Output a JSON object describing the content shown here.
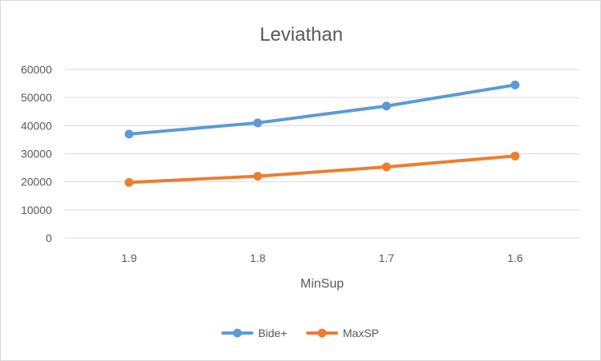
{
  "chart_data": {
    "type": "line",
    "title": "Leviathan",
    "xlabel": "MinSup",
    "ylabel": "",
    "categories": [
      "1.9",
      "1.8",
      "1.7",
      "1.6"
    ],
    "ylim": [
      0,
      60000
    ],
    "yticks": [
      0,
      10000,
      20000,
      30000,
      40000,
      50000,
      60000
    ],
    "grid": true,
    "legend": "bottom",
    "series": [
      {
        "name": "Bide+",
        "color": "#5b9bd5",
        "values": [
          37000,
          41000,
          47000,
          54500
        ]
      },
      {
        "name": "MaxSP",
        "color": "#ed7d31",
        "values": [
          19800,
          22000,
          25300,
          29200
        ]
      }
    ]
  }
}
